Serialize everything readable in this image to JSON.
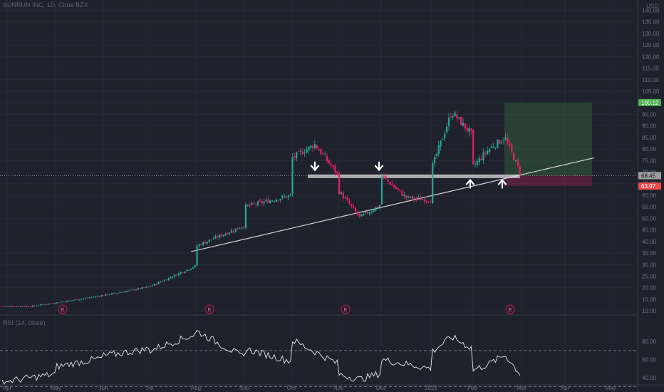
{
  "header": {
    "title": "SUNRUN INC, 1D, Cboe BZX",
    "currency": "USD"
  },
  "rsi_header": {
    "title": "RSI (14, close)"
  },
  "chart_data": [
    {
      "type": "candlestick",
      "title": "SUNRUN INC, 1D, Cboe BZX",
      "x_ticks": [
        "Apr",
        "May",
        "Jun",
        "Jul",
        "Aug",
        "Sep",
        "Oct",
        "Nov",
        "Dec",
        "2021",
        "Feb",
        "Mar",
        "Apr",
        "May"
      ],
      "y_ticks": [
        10,
        15,
        20,
        25,
        30,
        35,
        40,
        45,
        50,
        55,
        60,
        65,
        70,
        75,
        80,
        85,
        90,
        95,
        100,
        105,
        110,
        115,
        120,
        125,
        130,
        135,
        140
      ],
      "ylim": [
        8.5,
        142
      ],
      "price_path": [
        [
          "Apr",
          12.0
        ],
        [
          "May",
          15.0
        ],
        [
          "Jun",
          18.5
        ],
        [
          "Jul",
          20.5
        ],
        [
          "Jul",
          29.5
        ],
        [
          "Aug",
          38.0
        ],
        [
          "Aug",
          47.0
        ],
        [
          "Sep",
          55.0
        ],
        [
          "Sep",
          60.0
        ],
        [
          "Oct",
          76.0
        ],
        [
          "Oct",
          82.0
        ],
        [
          "Oct",
          68.5
        ],
        [
          "Nov",
          62.0
        ],
        [
          "Nov",
          50.5
        ],
        [
          "Nov",
          56.0
        ],
        [
          "Dec",
          68.5
        ],
        [
          "Dec",
          59.0
        ],
        [
          "Dec",
          58.0
        ],
        [
          "2021",
          71.0
        ],
        [
          "2021",
          96.0
        ],
        [
          "2021",
          86.0
        ],
        [
          "Feb",
          72.0
        ],
        [
          "Feb",
          80.0
        ],
        [
          "Feb",
          85.0
        ],
        [
          "Feb",
          68.45
        ]
      ],
      "price_labels": [
        {
          "value": 100.12,
          "text": "100.12",
          "color": "#4caf50"
        },
        {
          "value": 68.5,
          "text": "68.50",
          "color": "#ffffff"
        },
        {
          "value": 68.45,
          "text": "68.45",
          "color": "#9e9e9e"
        },
        {
          "value": 63.97,
          "text": "63.97",
          "color": "#f04a4a"
        }
      ],
      "support_zone": [
        67.4,
        69.0
      ],
      "trendline": {
        "from": [
          "Aug",
          35.6
        ],
        "to": [
          "Apr",
          76.2
        ]
      },
      "position": {
        "entry": 68.5,
        "target": 100.12,
        "stop": 63.97,
        "from": "Feb",
        "to": "Mar"
      },
      "arrows": [
        {
          "dir": "down",
          "x": "Oct",
          "price": 71.5
        },
        {
          "dir": "down",
          "x": "Dec",
          "price": 71.5
        },
        {
          "dir": "up",
          "x": "Feb",
          "price": 66.0
        },
        {
          "dir": "up",
          "x": "Feb",
          "price": 66.0
        }
      ],
      "earnings_marker": "E",
      "earnings": [
        "May",
        "Aug",
        "Nov",
        "Feb"
      ],
      "colors": {
        "up": "#26a69a",
        "down": "#e91e63",
        "background": "#1f222d"
      }
    },
    {
      "type": "line",
      "title": "RSI (14, close)",
      "y_ticks": [
        40,
        60,
        80
      ],
      "ylim": [
        32,
        95
      ],
      "bands": [
        30,
        70
      ],
      "path": [
        [
          "Apr",
          36
        ],
        [
          "Apr",
          44
        ],
        [
          "May",
          52
        ],
        [
          "May",
          62
        ],
        [
          "Jun",
          64
        ],
        [
          "Jun",
          72
        ],
        [
          "Jul",
          70
        ],
        [
          "Jul",
          88
        ],
        [
          "Aug",
          92
        ],
        [
          "Aug",
          62
        ],
        [
          "Sep",
          72
        ],
        [
          "Sep",
          58
        ],
        [
          "Oct",
          82
        ],
        [
          "Oct",
          55
        ],
        [
          "Nov",
          44
        ],
        [
          "Nov",
          38
        ],
        [
          "Nov",
          45
        ],
        [
          "Dec",
          60
        ],
        [
          "Dec",
          50
        ],
        [
          "2021",
          68
        ],
        [
          "2021",
          85
        ],
        [
          "2021",
          72
        ],
        [
          "Feb",
          48
        ],
        [
          "Feb",
          55
        ],
        [
          "Feb",
          65
        ],
        [
          "Feb",
          42
        ]
      ]
    }
  ]
}
